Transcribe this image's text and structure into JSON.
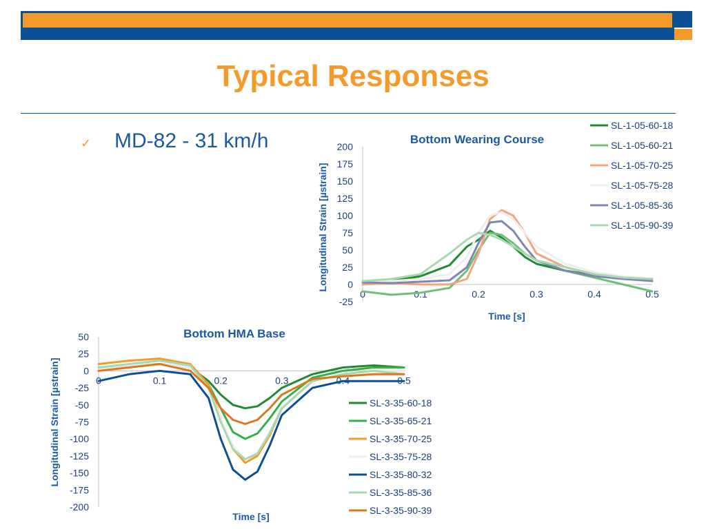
{
  "slide": {
    "title": "Typical Responses",
    "bullet_mark": "✓",
    "bullet_text": "MD-82 - 31 km/h"
  },
  "colors": {
    "brand_orange": "#f39a2b",
    "brand_blue": "#0d4f94",
    "chart_title": "#1a5aa5"
  },
  "chart_data": [
    {
      "type": "line",
      "title": "Bottom Wearing Course",
      "xlabel": "Time [s]",
      "ylabel": "Longitudinal Strain [µstrain]",
      "xlim": [
        0,
        0.5
      ],
      "ylim": [
        -25,
        200
      ],
      "xticks": [
        0,
        0.1,
        0.2,
        0.3,
        0.4,
        0.5
      ],
      "xtick_labels": [
        "0",
        "0.1",
        "0.2",
        "0.3",
        "0.4",
        "0.5"
      ],
      "yticks": [
        200,
        175,
        150,
        125,
        100,
        75,
        50,
        25,
        0,
        -25
      ],
      "ytick_labels": [
        "200",
        "175",
        "150",
        "125",
        "100",
        "75",
        "50",
        "25",
        "0",
        "-25"
      ],
      "legend": "right",
      "series": [
        {
          "name": "SL-1-05-60-18",
          "color": "#1f8a32",
          "x": [
            0,
            0.05,
            0.1,
            0.15,
            0.18,
            0.2,
            0.22,
            0.24,
            0.26,
            0.28,
            0.3,
            0.35,
            0.4,
            0.45,
            0.5
          ],
          "y": [
            5,
            5,
            12,
            28,
            55,
            65,
            78,
            68,
            55,
            40,
            30,
            20,
            14,
            10,
            8
          ]
        },
        {
          "name": "SL-1-05-60-21",
          "color": "#6fbf7a",
          "x": [
            0,
            0.05,
            0.1,
            0.15,
            0.18,
            0.2,
            0.22,
            0.24,
            0.26,
            0.28,
            0.3,
            0.35,
            0.4,
            0.45,
            0.5
          ],
          "y": [
            -10,
            -15,
            -12,
            -5,
            20,
            50,
            75,
            72,
            60,
            45,
            35,
            20,
            10,
            0,
            -10
          ]
        },
        {
          "name": "SL-1-05-70-25",
          "color": "#f2a47a",
          "x": [
            0,
            0.05,
            0.1,
            0.15,
            0.18,
            0.2,
            0.22,
            0.24,
            0.26,
            0.28,
            0.3,
            0.35,
            0.4,
            0.45,
            0.5
          ],
          "y": [
            0,
            2,
            0,
            0,
            8,
            45,
            95,
            108,
            100,
            75,
            45,
            25,
            15,
            10,
            8
          ]
        },
        {
          "name": "SL-1-05-75-28",
          "color": "#eeeeee",
          "x": [
            0,
            0.05,
            0.1,
            0.15,
            0.18,
            0.2,
            0.22,
            0.24,
            0.26,
            0.28,
            0.3,
            0.35,
            0.4,
            0.45,
            0.5
          ],
          "y": [
            5,
            5,
            8,
            15,
            40,
            75,
            100,
            105,
            95,
            75,
            55,
            30,
            18,
            12,
            8
          ]
        },
        {
          "name": "SL-1-05-85-36",
          "color": "#7f87b0",
          "x": [
            0,
            0.05,
            0.1,
            0.15,
            0.18,
            0.2,
            0.22,
            0.24,
            0.26,
            0.28,
            0.3,
            0.35,
            0.4,
            0.45,
            0.5
          ],
          "y": [
            3,
            2,
            4,
            6,
            25,
            60,
            90,
            92,
            78,
            55,
            35,
            20,
            12,
            8,
            5
          ]
        },
        {
          "name": "SL-1-05-90-39",
          "color": "#a8d8b0",
          "x": [
            0,
            0.05,
            0.1,
            0.15,
            0.18,
            0.2,
            0.22,
            0.24,
            0.26,
            0.28,
            0.3,
            0.35,
            0.4,
            0.45,
            0.5
          ],
          "y": [
            5,
            8,
            15,
            45,
            65,
            75,
            72,
            65,
            55,
            45,
            35,
            25,
            15,
            10,
            8
          ]
        }
      ]
    },
    {
      "type": "line",
      "title": "Bottom HMA Base",
      "xlabel": "Time [s]",
      "ylabel": "Longitudinal Strain [µstrain]",
      "xlim": [
        0,
        0.5
      ],
      "ylim": [
        -200,
        50
      ],
      "xticks": [
        0,
        0.1,
        0.2,
        0.3,
        0.4,
        0.5
      ],
      "xtick_labels": [
        "0",
        "0.1",
        "0.2",
        "0.3",
        "0.4",
        "0.5"
      ],
      "yticks": [
        50,
        25,
        0,
        -25,
        -50,
        -75,
        -100,
        -125,
        -150,
        -175,
        -200
      ],
      "ytick_labels": [
        "50",
        "25",
        "0",
        "-25",
        "-50",
        "-75",
        "-100",
        "-125",
        "-150",
        "-175",
        "-200"
      ],
      "legend": "bottom-right",
      "series": [
        {
          "name": "SL-3-35-60-18",
          "color": "#1f8a32",
          "x": [
            0,
            0.05,
            0.1,
            0.15,
            0.18,
            0.2,
            0.22,
            0.24,
            0.26,
            0.28,
            0.3,
            0.35,
            0.4,
            0.45,
            0.5
          ],
          "y": [
            5,
            8,
            10,
            5,
            -15,
            -35,
            -50,
            -55,
            -52,
            -40,
            -25,
            -5,
            5,
            8,
            5
          ]
        },
        {
          "name": "SL-3-35-65-21",
          "color": "#34b04a",
          "x": [
            0,
            0.05,
            0.1,
            0.15,
            0.18,
            0.2,
            0.22,
            0.24,
            0.26,
            0.28,
            0.3,
            0.35,
            0.4,
            0.45,
            0.5
          ],
          "y": [
            5,
            8,
            10,
            5,
            -20,
            -55,
            -90,
            -100,
            -92,
            -70,
            -45,
            -10,
            0,
            5,
            5
          ]
        },
        {
          "name": "SL-3-35-70-25",
          "color": "#f39a2b",
          "x": [
            0,
            0.05,
            0.1,
            0.15,
            0.18,
            0.2,
            0.22,
            0.24,
            0.26,
            0.28,
            0.3,
            0.35,
            0.4,
            0.45,
            0.5
          ],
          "y": [
            10,
            15,
            18,
            10,
            -20,
            -70,
            -115,
            -135,
            -125,
            -95,
            -55,
            -15,
            -5,
            0,
            0
          ]
        },
        {
          "name": "SL-3-35-75-28",
          "color": "#eeeeee",
          "x": [
            0,
            0.05,
            0.1,
            0.15,
            0.18,
            0.2,
            0.22,
            0.24,
            0.26,
            0.28,
            0.3,
            0.35,
            0.4,
            0.45,
            0.5
          ],
          "y": [
            5,
            8,
            10,
            5,
            -25,
            -70,
            -110,
            -130,
            -120,
            -90,
            -55,
            -15,
            -5,
            0,
            0
          ]
        },
        {
          "name": "SL-3-35-80-32",
          "color": "#0d4f94",
          "x": [
            0,
            0.05,
            0.1,
            0.15,
            0.18,
            0.2,
            0.22,
            0.24,
            0.26,
            0.28,
            0.3,
            0.35,
            0.4,
            0.45,
            0.5
          ],
          "y": [
            -15,
            -5,
            0,
            -5,
            -40,
            -100,
            -145,
            -160,
            -148,
            -110,
            -65,
            -25,
            -15,
            -15,
            -15
          ]
        },
        {
          "name": "SL-3-35-85-36",
          "color": "#a8d8b0",
          "x": [
            0,
            0.05,
            0.1,
            0.15,
            0.18,
            0.2,
            0.22,
            0.24,
            0.26,
            0.28,
            0.3,
            0.35,
            0.4,
            0.45,
            0.5
          ],
          "y": [
            5,
            10,
            15,
            8,
            -25,
            -75,
            -115,
            -130,
            -122,
            -92,
            -55,
            -15,
            -5,
            0,
            -5
          ]
        },
        {
          "name": "SL-3-35-90-39",
          "color": "#d9781f",
          "x": [
            0,
            0.05,
            0.1,
            0.15,
            0.18,
            0.2,
            0.22,
            0.24,
            0.26,
            0.28,
            0.3,
            0.35,
            0.4,
            0.45,
            0.5
          ],
          "y": [
            0,
            5,
            10,
            0,
            -25,
            -55,
            -72,
            -78,
            -72,
            -55,
            -35,
            -12,
            -8,
            -5,
            -5
          ]
        }
      ]
    }
  ]
}
